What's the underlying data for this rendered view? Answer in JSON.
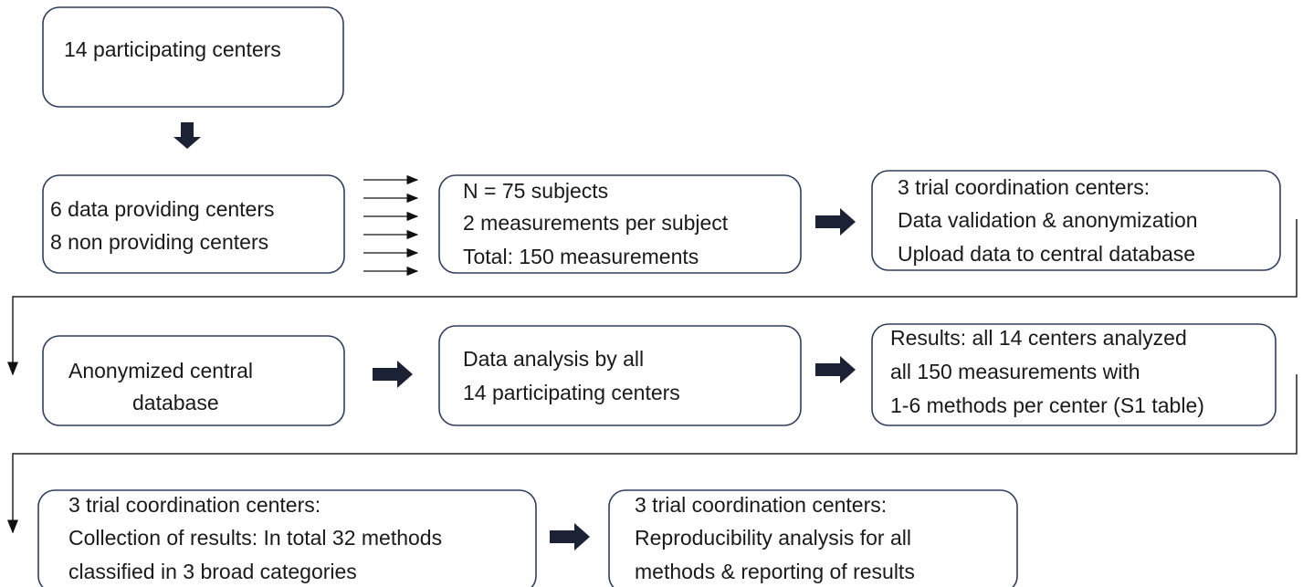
{
  "nodes": [
    {
      "lines": [
        "14 participating centers"
      ]
    },
    {
      "lines": [
        "6 data providing centers",
        "8 non providing centers"
      ]
    },
    {
      "lines": [
        "N = 75 subjects",
        "2 measurements per subject",
        "Total: 150 measurements"
      ]
    },
    {
      "lines": [
        "3 trial coordination centers:",
        "Data validation & anonymization",
        "Upload data to central database"
      ]
    },
    {
      "lines": [
        "Anonymized central",
        "database"
      ]
    },
    {
      "lines": [
        "Data analysis by all",
        "14 participating centers"
      ]
    },
    {
      "lines": [
        "Results: all 14 centers analyzed",
        "all 150 measurements with",
        "1-6 methods per center (S1 table)"
      ]
    },
    {
      "lines": [
        "3 trial coordination centers:",
        "Collection of results: In total 32 methods",
        "classified in 3 broad categories"
      ]
    },
    {
      "lines": [
        "3 trial coordination centers:",
        "Reproducibility analysis for all",
        "methods & reporting of results"
      ]
    }
  ]
}
